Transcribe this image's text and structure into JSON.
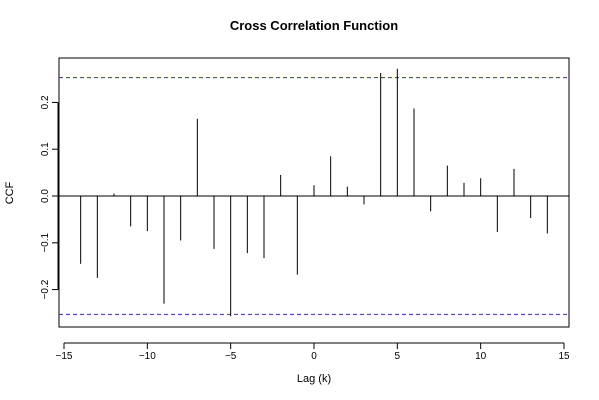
{
  "chart_data": {
    "type": "bar",
    "title": "Cross Correlation Function",
    "xlabel": "Lag (k)",
    "ylabel": "CCF",
    "xlim": [
      -15.3,
      15.3
    ],
    "ylim": [
      -0.28,
      0.295
    ],
    "x_ticks": [
      -15,
      -10,
      -5,
      0,
      5,
      10,
      15
    ],
    "x_tick_labels": [
      "−15",
      "−10",
      "−5",
      "0",
      "5",
      "10",
      "15"
    ],
    "y_ticks": [
      -0.2,
      -0.1,
      0.0,
      0.1,
      0.2
    ],
    "y_tick_labels": [
      "−0.2",
      "−0.1",
      "0.0",
      "0.1",
      "0.2"
    ],
    "confidence_bounds": [
      0.253,
      -0.253
    ],
    "confidence_color": "#3333cc",
    "grid": false,
    "lags": [
      -14,
      -13,
      -12,
      -11,
      -10,
      -9,
      -8,
      -7,
      -6,
      -5,
      -4,
      -3,
      -2,
      -1,
      0,
      1,
      2,
      3,
      4,
      5,
      6,
      7,
      8,
      9,
      10,
      11,
      12,
      13,
      14
    ],
    "values": [
      -0.145,
      -0.175,
      0.005,
      -0.065,
      -0.075,
      -0.23,
      -0.095,
      0.165,
      -0.113,
      -0.257,
      -0.122,
      -0.133,
      0.045,
      -0.168,
      0.023,
      0.085,
      0.02,
      -0.018,
      0.263,
      0.272,
      0.187,
      -0.033,
      0.065,
      0.028,
      0.038,
      -0.077,
      0.058,
      -0.047,
      -0.08
    ]
  }
}
